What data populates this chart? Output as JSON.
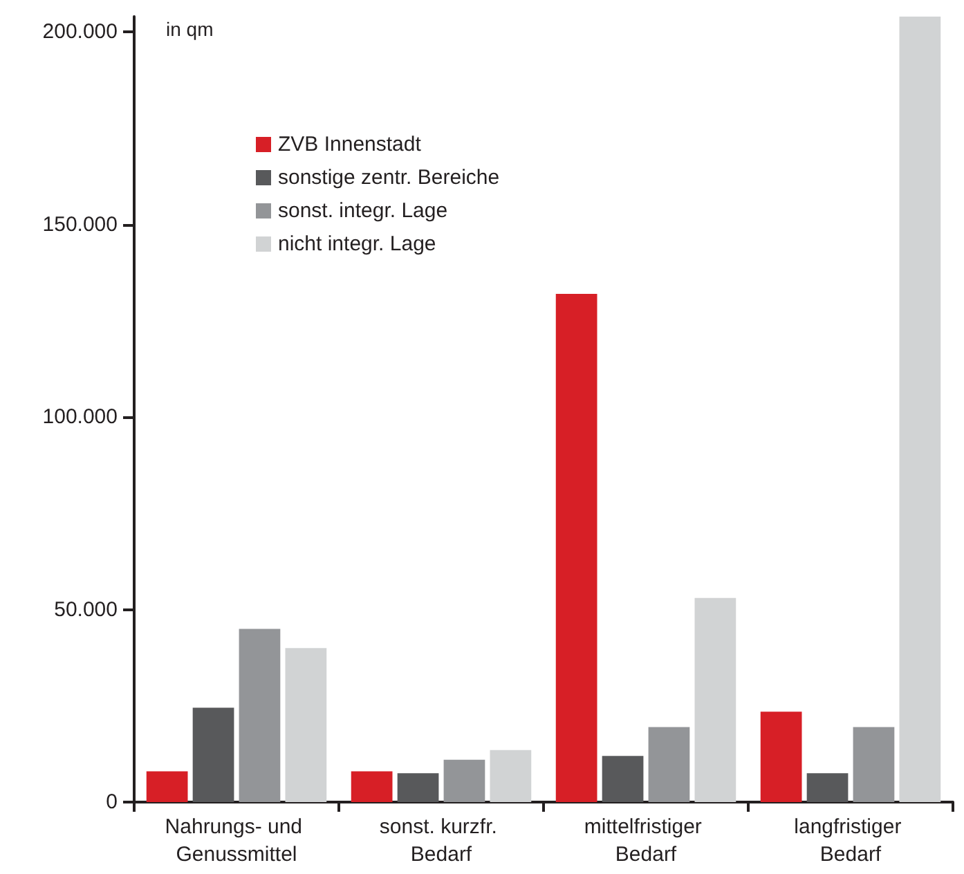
{
  "chart_data": {
    "type": "bar",
    "ylabel": "in qm",
    "categories": [
      "Nahrungs- und Genussmittel",
      "sonst. kurzfr. Bedarf",
      "mittelfristiger Bedarf",
      "langfristiger Bedarf"
    ],
    "series": [
      {
        "name": "ZVB Innenstadt",
        "color": "#d71f26",
        "values": [
          8000,
          8000,
          132000,
          23500
        ]
      },
      {
        "name": "sonstige zentr. Bereiche",
        "color": "#58595b",
        "values": [
          24500,
          7500,
          12000,
          7500
        ]
      },
      {
        "name": "sonst. integr. Lage",
        "color": "#939598",
        "values": [
          45000,
          11000,
          19500,
          19500
        ]
      },
      {
        "name": "nicht integr. Lage",
        "color": "#d1d3d4",
        "values": [
          40000,
          13500,
          53000,
          204000
        ]
      }
    ],
    "ylim": [
      0,
      204000
    ],
    "yticks": [
      {
        "value": 0,
        "label": "0"
      },
      {
        "value": 50000,
        "label": "50.000"
      },
      {
        "value": 100000,
        "label": "100.000"
      },
      {
        "value": 150000,
        "label": "150.000"
      },
      {
        "value": 200000,
        "label": "200.000"
      }
    ],
    "grid": false,
    "legend": "top left"
  }
}
